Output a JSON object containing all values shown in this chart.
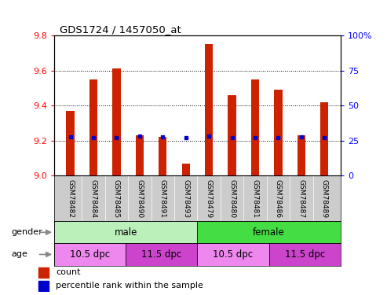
{
  "title": "GDS1724 / 1457050_at",
  "samples": [
    "GSM78482",
    "GSM78484",
    "GSM78485",
    "GSM78490",
    "GSM78491",
    "GSM78493",
    "GSM78479",
    "GSM78480",
    "GSM78481",
    "GSM78486",
    "GSM78487",
    "GSM78489"
  ],
  "counts": [
    9.37,
    9.55,
    9.61,
    9.23,
    9.22,
    9.07,
    9.75,
    9.46,
    9.55,
    9.49,
    9.23,
    9.42
  ],
  "percentile_ranks": [
    9.22,
    9.215,
    9.215,
    9.225,
    9.22,
    9.215,
    9.225,
    9.215,
    9.215,
    9.215,
    9.22,
    9.215
  ],
  "ylim_left": [
    9.0,
    9.8
  ],
  "ylim_right": [
    0,
    100
  ],
  "yticks_left": [
    9.0,
    9.2,
    9.4,
    9.6,
    9.8
  ],
  "yticks_right": [
    0,
    25,
    50,
    75,
    100
  ],
  "ytick_labels_right": [
    "0",
    "25",
    "50",
    "75",
    "100%"
  ],
  "bar_color": "#cc2200",
  "percentile_color": "#0000cc",
  "gender_groups": [
    {
      "label": "male",
      "start": 0,
      "end": 6,
      "color": "#bbf0bb"
    },
    {
      "label": "female",
      "start": 6,
      "end": 12,
      "color": "#44dd44"
    }
  ],
  "age_groups": [
    {
      "label": "10.5 dpc",
      "start": 0,
      "end": 3,
      "color": "#ee88ee"
    },
    {
      "label": "11.5 dpc",
      "start": 3,
      "end": 6,
      "color": "#cc44cc"
    },
    {
      "label": "10.5 dpc",
      "start": 6,
      "end": 9,
      "color": "#ee88ee"
    },
    {
      "label": "11.5 dpc",
      "start": 9,
      "end": 12,
      "color": "#cc44cc"
    }
  ],
  "n_samples": 12,
  "bar_width": 0.35,
  "figsize": [
    4.93,
    3.75
  ],
  "dpi": 100
}
